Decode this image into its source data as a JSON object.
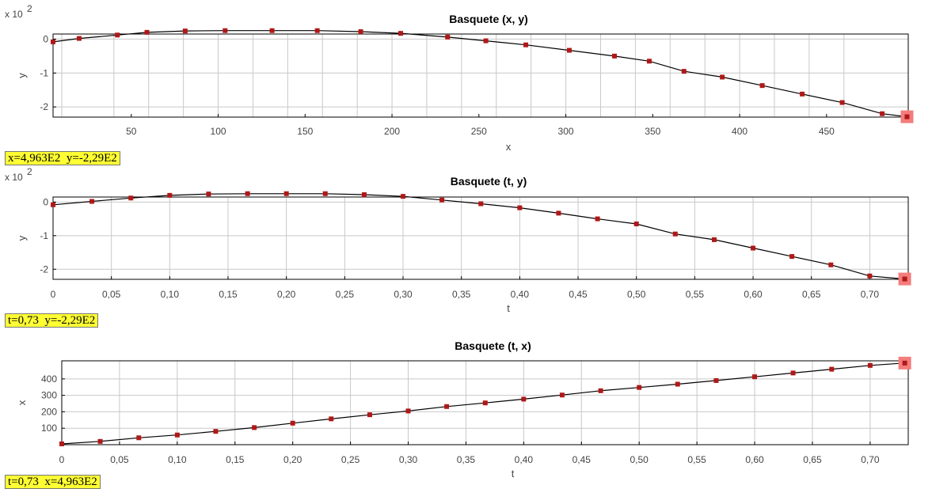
{
  "chart_data": [
    {
      "type": "line",
      "title": "Basquete (x, y)",
      "xlabel": "x",
      "ylabel": "y",
      "y_multiplier_text": "x 10",
      "y_multiplier_exp": "2",
      "xlim": [
        5,
        497
      ],
      "ylim": [
        -2.3,
        0.15
      ],
      "x_ticks": [
        50,
        100,
        150,
        200,
        250,
        300,
        350,
        400,
        450
      ],
      "x_tick_labels": [
        "50",
        "100",
        "150",
        "200",
        "250",
        "300",
        "350",
        "400",
        "450"
      ],
      "y_ticks": [
        0,
        -1,
        -2
      ],
      "y_tick_labels": [
        "0",
        "-1",
        "-2"
      ],
      "x_grid": [
        10,
        40,
        60,
        80,
        100,
        120,
        140,
        160,
        180,
        200,
        220,
        240,
        260,
        280,
        300,
        320,
        340,
        360,
        380,
        400,
        420,
        440,
        460
      ],
      "y_grid": [
        0,
        -1,
        -2
      ],
      "series": [
        {
          "x": [
            5,
            20,
            42,
            59,
            81,
            104,
            131,
            157,
            182,
            205,
            232,
            254,
            277,
            302,
            328,
            348,
            368,
            390,
            413,
            436,
            459,
            482,
            496.3
          ],
          "y": [
            -0.08,
            0.02,
            0.12,
            0.2,
            0.24,
            0.25,
            0.25,
            0.25,
            0.22,
            0.17,
            0.06,
            -0.05,
            -0.17,
            -0.33,
            -0.5,
            -0.65,
            -0.95,
            -1.12,
            -1.37,
            -1.62,
            -1.87,
            -2.2,
            -2.29
          ]
        }
      ],
      "highlight": {
        "x": 496.3,
        "y": -2.29
      },
      "readout": "x=4,963E2  y=-2,29E2"
    },
    {
      "type": "line",
      "title": "Basquete (t, y)",
      "xlabel": "t",
      "ylabel": "y",
      "y_multiplier_text": "x 10",
      "y_multiplier_exp": "2",
      "xlim": [
        0,
        0.733
      ],
      "ylim": [
        -2.3,
        0.15
      ],
      "x_ticks": [
        0,
        0.05,
        0.1,
        0.15,
        0.2,
        0.25,
        0.3,
        0.35,
        0.4,
        0.45,
        0.5,
        0.55,
        0.6,
        0.65,
        0.7
      ],
      "x_tick_labels": [
        "0",
        "0,05",
        "0,10",
        "0,15",
        "0,20",
        "0,25",
        "0,30",
        "0,35",
        "0,40",
        "0,45",
        "0,50",
        "0,55",
        "0,60",
        "0,65",
        "0,70"
      ],
      "y_ticks": [
        0,
        -1,
        -2
      ],
      "y_tick_labels": [
        "0",
        "-1",
        "-2"
      ],
      "x_grid": [
        0.05,
        0.1,
        0.15,
        0.2,
        0.25,
        0.3,
        0.35,
        0.4,
        0.45,
        0.5,
        0.55,
        0.6,
        0.65,
        0.7
      ],
      "y_grid": [
        0,
        -1,
        -2
      ],
      "series": [
        {
          "x": [
            0,
            0.0333,
            0.0667,
            0.1,
            0.1333,
            0.1667,
            0.2,
            0.2333,
            0.2667,
            0.3,
            0.3333,
            0.3667,
            0.4,
            0.4333,
            0.4667,
            0.5,
            0.5333,
            0.5667,
            0.6,
            0.6333,
            0.6667,
            0.7,
            0.73
          ],
          "y": [
            -0.08,
            0.02,
            0.12,
            0.2,
            0.24,
            0.25,
            0.25,
            0.25,
            0.22,
            0.17,
            0.06,
            -0.05,
            -0.17,
            -0.33,
            -0.5,
            -0.65,
            -0.95,
            -1.12,
            -1.37,
            -1.62,
            -1.87,
            -2.2,
            -2.29
          ]
        }
      ],
      "highlight": {
        "x": 0.73,
        "y": -2.29
      },
      "readout": "t=0,73  y=-2,29E2"
    },
    {
      "type": "line",
      "title": "Basquete (t, x)",
      "xlabel": "t",
      "ylabel": "x",
      "xlim": [
        0,
        0.733
      ],
      "ylim": [
        0,
        510
      ],
      "x_ticks": [
        0,
        0.05,
        0.1,
        0.15,
        0.2,
        0.25,
        0.3,
        0.35,
        0.4,
        0.45,
        0.5,
        0.55,
        0.6,
        0.65,
        0.7
      ],
      "x_tick_labels": [
        "0",
        "0,05",
        "0,10",
        "0,15",
        "0,20",
        "0,25",
        "0,30",
        "0,35",
        "0,40",
        "0,45",
        "0,50",
        "0,55",
        "0,60",
        "0,65",
        "0,70"
      ],
      "y_ticks": [
        100,
        200,
        300,
        400
      ],
      "y_tick_labels": [
        "100",
        "200",
        "300",
        "400"
      ],
      "x_grid": [
        0.05,
        0.1,
        0.15,
        0.2,
        0.25,
        0.3,
        0.35,
        0.4,
        0.45,
        0.5,
        0.55,
        0.6,
        0.65,
        0.7
      ],
      "y_grid": [
        100,
        200,
        300,
        400
      ],
      "series": [
        {
          "x": [
            0,
            0.0333,
            0.0667,
            0.1,
            0.1333,
            0.1667,
            0.2,
            0.2333,
            0.2667,
            0.3,
            0.3333,
            0.3667,
            0.4,
            0.4333,
            0.4667,
            0.5,
            0.5333,
            0.5667,
            0.6,
            0.6333,
            0.6667,
            0.7,
            0.73
          ],
          "y": [
            5,
            20,
            42,
            59,
            81,
            104,
            131,
            157,
            182,
            205,
            232,
            254,
            277,
            302,
            328,
            348,
            368,
            390,
            413,
            436,
            459,
            482,
            496.3
          ]
        }
      ],
      "highlight": {
        "x": 0.73,
        "y": 496.3
      },
      "readout": "t=0,73  x=4,963E2"
    }
  ],
  "colors": {
    "marker": "#b01818",
    "line": "#000000",
    "highlight": "#f47c7c",
    "grid": "#c8c8c8",
    "readout_bg": "#ffff33"
  }
}
